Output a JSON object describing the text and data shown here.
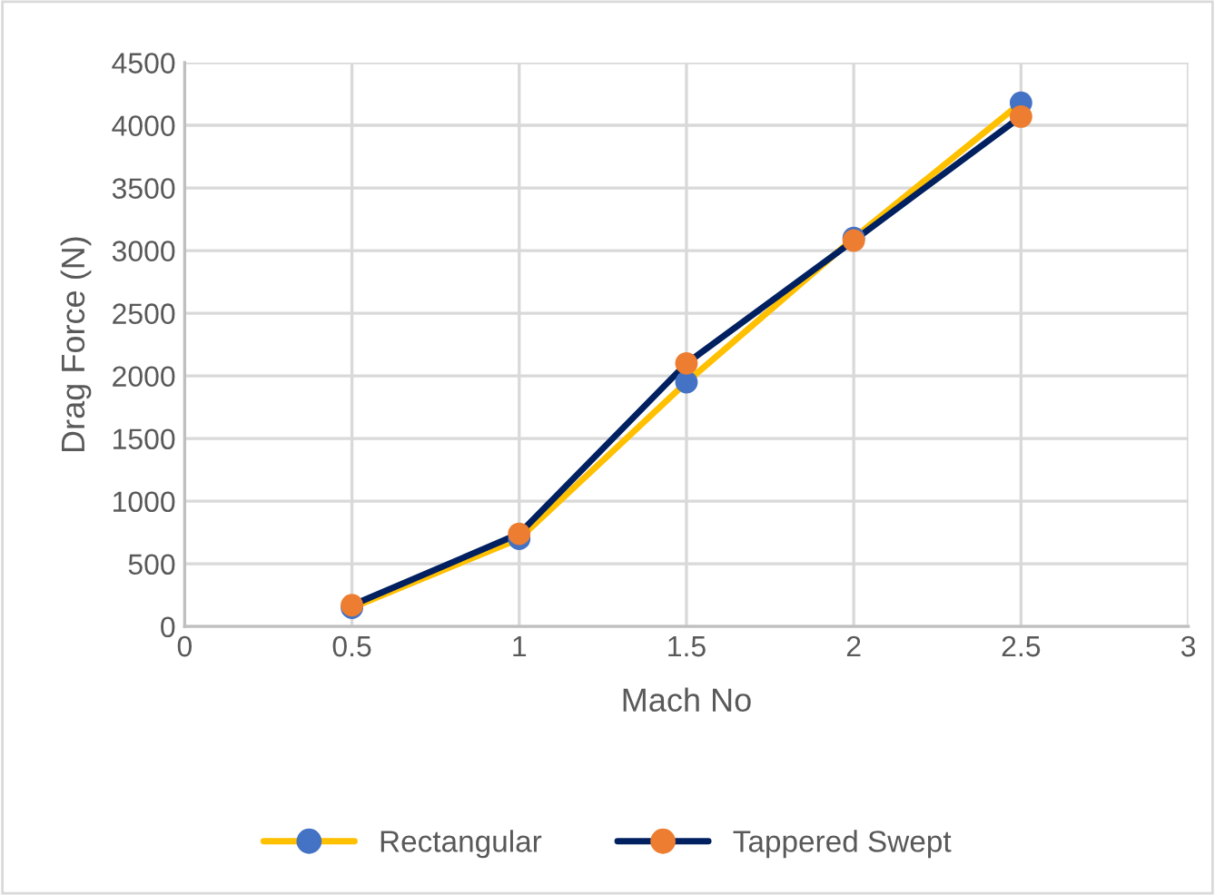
{
  "chart_data": {
    "type": "line",
    "xlabel": "Mach No",
    "ylabel": "Drag Force (N)",
    "x": [
      0.5,
      1,
      1.5,
      2,
      2.5
    ],
    "series": [
      {
        "name": "Rectangular",
        "color": "#ffc000",
        "colors": [
          "#4472c4",
          "#4472c4",
          "#4472c4",
          "#4472c4",
          "#4472c4"
        ],
        "values": [
          150,
          700,
          1950,
          3100,
          4180
        ]
      },
      {
        "name": "Tappered Swept",
        "color": "#002060",
        "colors": [
          "#ed7d31",
          "#ed7d31",
          "#ed7d31",
          "#ed7d31",
          "#ed7d31"
        ],
        "values": [
          170,
          740,
          2100,
          3080,
          4070
        ]
      }
    ],
    "xlim": [
      0,
      3
    ],
    "xticks": [
      0,
      0.5,
      1,
      1.5,
      2,
      2.5,
      3
    ],
    "ylim": [
      0,
      4500
    ],
    "yticks": [
      0,
      500,
      1000,
      1500,
      2000,
      2500,
      3000,
      3500,
      4000,
      4500
    ],
    "grid": true,
    "legend": "bottom",
    "marker": "circle",
    "line_style": "solid"
  }
}
